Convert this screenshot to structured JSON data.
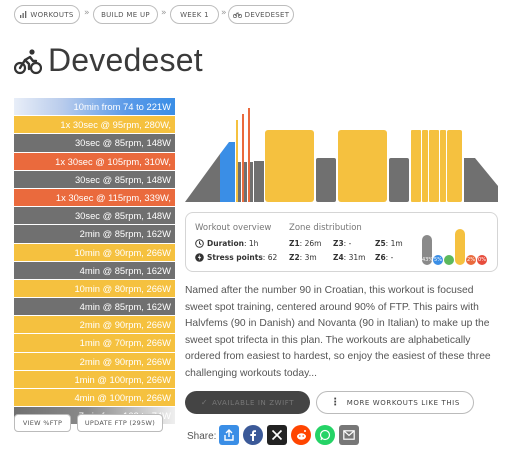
{
  "breadcrumb": {
    "items": [
      {
        "label": "WORKOUTS",
        "icon": "bar-chart-icon"
      },
      {
        "label": "BUILD ME UP"
      },
      {
        "label": "WEEK 1"
      },
      {
        "label": "DEVEDESET",
        "icon": "bike-icon"
      }
    ],
    "separator": "»"
  },
  "title": "Devedeset",
  "intervals": [
    {
      "text": "10min from 74 to 221W",
      "color": "ramp-grey-blue"
    },
    {
      "text": "1x 30sec @ 95rpm, 280W,",
      "color": "#f5c13f"
    },
    {
      "text": "30sec @ 85rpm, 148W",
      "color": "#707070"
    },
    {
      "text": "1x 30sec @ 105rpm, 310W,",
      "color": "#ea6a3d"
    },
    {
      "text": "30sec @ 85rpm, 148W",
      "color": "#707070"
    },
    {
      "text": "1x 30sec @ 115rpm, 339W,",
      "color": "#ea6a3d"
    },
    {
      "text": "30sec @ 85rpm, 148W",
      "color": "#707070"
    },
    {
      "text": "2min @ 85rpm, 162W",
      "color": "#707070"
    },
    {
      "text": "10min @ 90rpm, 266W",
      "color": "#f5c13f"
    },
    {
      "text": "4min @ 85rpm, 162W",
      "color": "#707070"
    },
    {
      "text": "10min @ 80rpm, 266W",
      "color": "#f5c13f"
    },
    {
      "text": "4min @ 85rpm, 162W",
      "color": "#707070"
    },
    {
      "text": "2min @ 90rpm, 266W",
      "color": "#f5c13f"
    },
    {
      "text": "1min @ 70rpm, 266W",
      "color": "#f5c13f"
    },
    {
      "text": "2min @ 90rpm, 266W",
      "color": "#f5c13f"
    },
    {
      "text": "1min @ 100rpm, 266W",
      "color": "#f5c13f"
    },
    {
      "text": "4min @ 100rpm, 266W",
      "color": "#f5c13f"
    },
    {
      "text": "7min from 162 to 74W",
      "color": "ramp-grey-white"
    }
  ],
  "buttons": {
    "view_ftp": "VIEW %FTP",
    "update_ftp": "UPDATE FTP (295W)",
    "available": "AVAILABLE IN ZWIFT",
    "more": "MORE WORKOUTS LIKE THIS"
  },
  "overview": {
    "heading": "Workout overview",
    "duration_label": "Duration",
    "duration_value": "1h",
    "stress_label": "Stress points",
    "stress_value": "62"
  },
  "zones": {
    "heading": "Zone distribution",
    "items": [
      {
        "label": "Z1",
        "value": "26m"
      },
      {
        "label": "Z2",
        "value": "3m"
      },
      {
        "label": "Z3",
        "value": "-"
      },
      {
        "label": "Z4",
        "value": "31m"
      },
      {
        "label": "Z5",
        "value": "1m"
      },
      {
        "label": "Z6",
        "value": "-"
      }
    ],
    "bars": [
      {
        "pct": "43%",
        "fraction": 0.43,
        "color": "#8a8a8a"
      },
      {
        "pct": "5%",
        "fraction": 0.05,
        "color": "#3a8ee6"
      },
      {
        "pct": "",
        "fraction": 0.0,
        "color": "#5cb85c"
      },
      {
        "pct": "",
        "fraction": 0.52,
        "color": "#f5c13f"
      },
      {
        "pct": "2%",
        "fraction": 0.02,
        "color": "#ea6a3d"
      },
      {
        "pct": "0%",
        "fraction": 0.0,
        "color": "#e74c3c"
      }
    ]
  },
  "description": "Named after the number 90 in Croatian, this workout is focused sweet spot training, centered around 90% of FTP. This pairs with Halvfems (90 in Danish) and Novanta (90 in Italian) to make up the sweet spot trifecta in this plan. The workouts are alphabetically ordered from easiest to hardest, so enjoy the easiest of these three challenging workouts today...",
  "share": {
    "label": "Share:",
    "icons": [
      {
        "name": "share-arrow-icon",
        "color": "#3a8ee6"
      },
      {
        "name": "facebook-icon",
        "color": "#3b5998"
      },
      {
        "name": "x-icon",
        "color": "#222222"
      },
      {
        "name": "reddit-icon",
        "color": "#ff4500"
      },
      {
        "name": "whatsapp-icon",
        "color": "#25d366"
      },
      {
        "name": "email-icon",
        "color": "#777777"
      }
    ]
  },
  "colors": {
    "z1": "#707070",
    "z2": "#3a8ee6",
    "z4": "#f5c13f",
    "z5": "#ea6a3d"
  }
}
